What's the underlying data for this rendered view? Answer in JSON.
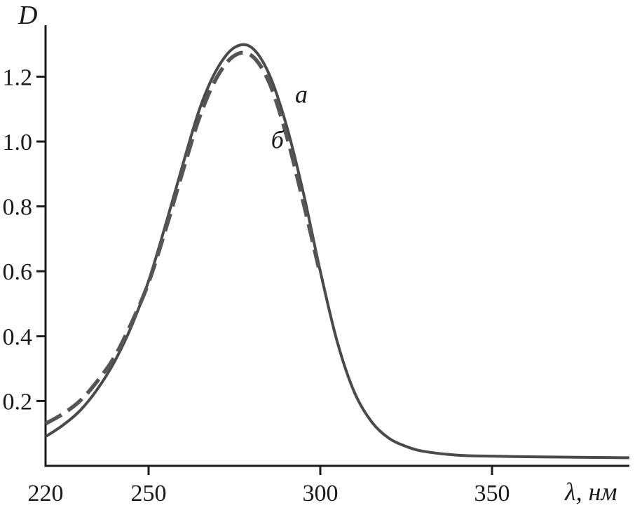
{
  "figure": {
    "y_axis_label": "D",
    "x_axis_label": "λ, нм",
    "curve_a_label": "a",
    "curve_b_label": "б",
    "axis_color": "#1a1a1a",
    "background_color": "#ffffff"
  },
  "chart_data": {
    "type": "line",
    "xlabel": "λ, нм",
    "ylabel": "D",
    "xlim": [
      220,
      390
    ],
    "ylim": [
      0,
      1.35
    ],
    "xticks": [
      220,
      250,
      300,
      350
    ],
    "yticks": [
      0.2,
      0.4,
      0.6,
      0.8,
      1.0,
      1.2
    ],
    "grid": false,
    "legend_position": "none",
    "series": [
      {
        "name": "a",
        "style": "solid",
        "color": "#4a4a4a",
        "x": [
          220,
          225,
          230,
          235,
          240,
          245,
          250,
          255,
          260,
          265,
          270,
          275,
          280,
          285,
          290,
          295,
          300,
          305,
          310,
          315,
          320,
          325,
          330,
          340,
          350,
          360,
          370,
          380,
          390
        ],
        "y": [
          0.09,
          0.125,
          0.17,
          0.235,
          0.32,
          0.43,
          0.57,
          0.745,
          0.93,
          1.105,
          1.225,
          1.29,
          1.29,
          1.21,
          1.055,
          0.845,
          0.6,
          0.38,
          0.225,
          0.135,
          0.085,
          0.06,
          0.045,
          0.033,
          0.03,
          0.028,
          0.027,
          0.026,
          0.025
        ]
      },
      {
        "name": "б",
        "style": "dashed",
        "color": "#555555",
        "x": [
          220,
          225,
          230,
          235,
          240,
          245,
          250,
          255,
          260,
          265,
          270,
          275,
          280,
          285,
          290,
          295,
          300
        ],
        "y": [
          0.13,
          0.16,
          0.2,
          0.26,
          0.335,
          0.44,
          0.565,
          0.73,
          0.91,
          1.08,
          1.2,
          1.265,
          1.265,
          1.185,
          1.025,
          0.815,
          0.59
        ]
      }
    ],
    "annotations": [
      {
        "text": "a",
        "x": 294.5,
        "y": 1.12
      },
      {
        "text": "б",
        "x": 287.5,
        "y": 0.98
      }
    ]
  }
}
